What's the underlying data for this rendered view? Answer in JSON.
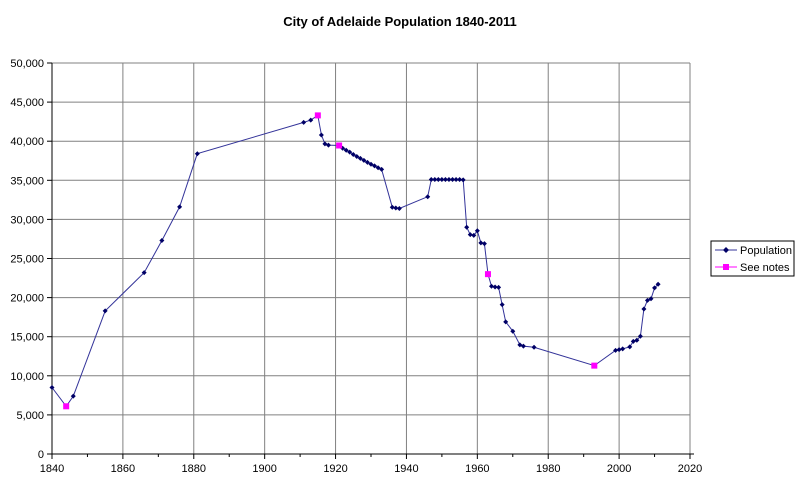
{
  "chart_data": {
    "type": "line",
    "title": "City of Adelaide Population 1840-2011",
    "xlabel": "",
    "ylabel": "",
    "xlim": [
      1840,
      2020
    ],
    "ylim": [
      0,
      50000
    ],
    "grid": true,
    "legend_position": "right-middle",
    "x_tick_step": 20,
    "y_tick_step": 5000,
    "x_tick_labels": [
      "1840",
      "1860",
      "1880",
      "1900",
      "1920",
      "1940",
      "1960",
      "1980",
      "2000",
      "2020"
    ],
    "y_tick_labels": [
      "0",
      "5,000",
      "10,000",
      "15,000",
      "20,000",
      "25,000",
      "30,000",
      "35,000",
      "40,000",
      "45,000",
      "50,000"
    ],
    "colors": {
      "grid": "#808080",
      "axis": "#000000",
      "population_line": "#333399",
      "population_marker": "#000066",
      "see_notes_marker": "#ff00ff"
    },
    "series": [
      {
        "name": "Population",
        "marker": "diamond",
        "points": [
          [
            1840,
            8500
          ],
          [
            1844,
            6100
          ],
          [
            1846,
            7400
          ],
          [
            1855,
            18300
          ],
          [
            1866,
            23200
          ],
          [
            1871,
            27300
          ],
          [
            1876,
            31600
          ],
          [
            1881,
            38400
          ],
          [
            1911,
            42400
          ],
          [
            1913,
            42700
          ],
          [
            1915,
            43300
          ],
          [
            1916,
            40800
          ],
          [
            1917,
            39650
          ],
          [
            1918,
            39500
          ],
          [
            1921,
            39450
          ],
          [
            1922,
            39100
          ],
          [
            1923,
            38850
          ],
          [
            1924,
            38600
          ],
          [
            1925,
            38300
          ],
          [
            1926,
            38050
          ],
          [
            1927,
            37800
          ],
          [
            1928,
            37550
          ],
          [
            1929,
            37300
          ],
          [
            1930,
            37050
          ],
          [
            1931,
            36850
          ],
          [
            1932,
            36600
          ],
          [
            1933,
            36400
          ],
          [
            1936,
            31550
          ],
          [
            1937,
            31450
          ],
          [
            1938,
            31400
          ],
          [
            1946,
            32900
          ],
          [
            1947,
            35100
          ],
          [
            1948,
            35100
          ],
          [
            1949,
            35100
          ],
          [
            1950,
            35100
          ],
          [
            1951,
            35100
          ],
          [
            1952,
            35100
          ],
          [
            1953,
            35100
          ],
          [
            1954,
            35100
          ],
          [
            1955,
            35100
          ],
          [
            1956,
            35050
          ],
          [
            1957,
            29000
          ],
          [
            1958,
            28050
          ],
          [
            1959,
            27950
          ],
          [
            1960,
            28550
          ],
          [
            1961,
            27000
          ],
          [
            1962,
            26900
          ],
          [
            1963,
            23000
          ],
          [
            1964,
            21450
          ],
          [
            1965,
            21350
          ],
          [
            1966,
            21300
          ],
          [
            1967,
            19100
          ],
          [
            1968,
            16900
          ],
          [
            1970,
            15700
          ],
          [
            1972,
            13950
          ],
          [
            1973,
            13800
          ],
          [
            1976,
            13650
          ],
          [
            1993,
            11300
          ],
          [
            1999,
            13250
          ],
          [
            2000,
            13350
          ],
          [
            2001,
            13450
          ],
          [
            2003,
            13700
          ],
          [
            2004,
            14400
          ],
          [
            2005,
            14550
          ],
          [
            2006,
            15050
          ],
          [
            2007,
            18550
          ],
          [
            2008,
            19650
          ],
          [
            2009,
            19850
          ],
          [
            2010,
            21250
          ],
          [
            2011,
            21700
          ]
        ]
      },
      {
        "name": "See notes",
        "marker": "square",
        "points": [
          [
            1844,
            6100
          ],
          [
            1915,
            43300
          ],
          [
            1921,
            39450
          ],
          [
            1963,
            23000
          ],
          [
            1993,
            11300
          ]
        ]
      }
    ]
  }
}
